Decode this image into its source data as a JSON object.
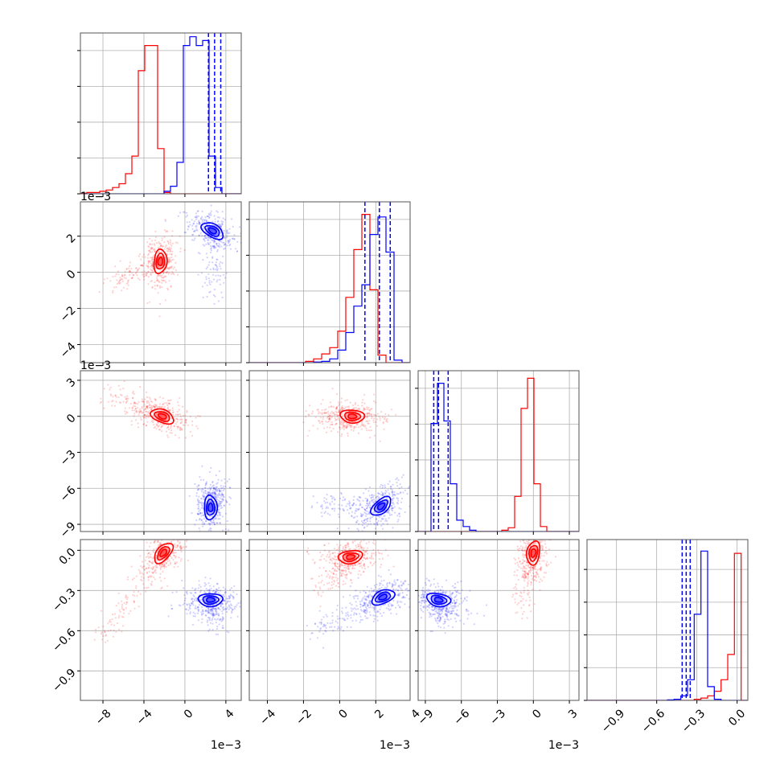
{
  "colors": {
    "red": "#ff0000",
    "blue": "#0000ff",
    "grid": "#b0b0b0",
    "frame": "#555555"
  },
  "chart_data": {
    "type": "corner",
    "grid": true,
    "series_colors": [
      "red",
      "blue"
    ],
    "axes": [
      {
        "scale_label": "1e−3",
        "range": [
          -10.2,
          5.5
        ],
        "ticks": [
          {
            "v": -8,
            "label": "−8"
          },
          {
            "v": -4,
            "label": "−4"
          },
          {
            "v": 0,
            "label": "0"
          },
          {
            "v": 4,
            "label": "4"
          }
        ]
      },
      {
        "scale_label": "1e−3",
        "range": [
          -5.0,
          3.9
        ],
        "ticks": [
          {
            "v": -4,
            "label": "−4"
          },
          {
            "v": -2,
            "label": "−2"
          },
          {
            "v": 0,
            "label": "0"
          },
          {
            "v": 2,
            "label": "2"
          },
          {
            "v": 4,
            "label": "4"
          }
        ]
      },
      {
        "scale_label": "1e−3",
        "range": [
          -9.6,
          3.8
        ],
        "ticks": [
          {
            "v": -9,
            "label": "−9"
          },
          {
            "v": -6,
            "label": "−6"
          },
          {
            "v": -3,
            "label": "−3"
          },
          {
            "v": 0,
            "label": "0"
          },
          {
            "v": 3,
            "label": "3"
          }
        ]
      },
      {
        "scale_label": "",
        "range": [
          -1.12,
          0.08
        ],
        "ticks": [
          {
            "v": -0.9,
            "label": "−0.9"
          },
          {
            "v": -0.6,
            "label": "−0.6"
          },
          {
            "v": -0.3,
            "label": "−0.3"
          },
          {
            "v": 0.0,
            "label": "0.0"
          }
        ]
      }
    ],
    "marginals": [
      {
        "red": {
          "edges": [
            -10.2,
            5.5
          ],
          "counts": [
            0.5,
            1,
            1,
            2,
            3,
            5,
            8,
            16,
            30,
            98,
            118,
            118,
            36,
            1,
            0,
            0,
            0,
            0,
            0,
            0,
            0,
            0,
            0,
            0,
            0
          ]
        },
        "blue": {
          "edges": [
            -10.2,
            5.5
          ],
          "counts": [
            0,
            0,
            0,
            0,
            0,
            0,
            0,
            0,
            0,
            0,
            0,
            0,
            0,
            2,
            6,
            25,
            118,
            125,
            118,
            122,
            30,
            5,
            0,
            0,
            0
          ]
        },
        "quantiles": [
          2.3,
          2.9,
          3.5
        ],
        "ymax": 128
      },
      {
        "red": {
          "edges": [
            -5.0,
            3.9
          ],
          "counts": [
            0,
            0,
            0,
            0,
            0,
            0,
            0,
            1,
            3,
            7,
            12,
            25,
            52,
            90,
            118,
            58,
            6,
            0,
            0,
            0
          ]
        },
        "blue": {
          "edges": [
            -5.0,
            3.9
          ],
          "counts": [
            0,
            0,
            0,
            0,
            0,
            0,
            0,
            0,
            0.5,
            1,
            3,
            10,
            24,
            45,
            62,
            102,
            116,
            88,
            2,
            0
          ]
        },
        "quantiles": [
          1.4,
          2.2,
          2.8
        ],
        "ymax": 128
      },
      {
        "red": {
          "edges": [
            -9.6,
            3.8
          ],
          "counts": [
            0,
            0,
            0,
            0,
            0,
            0,
            0,
            0,
            0,
            0,
            0,
            0,
            0,
            1,
            3,
            28,
            98,
            122,
            38,
            4,
            0,
            0,
            0,
            0,
            0
          ]
        },
        "blue": {
          "edges": [
            -9.6,
            3.8
          ],
          "counts": [
            0,
            0,
            86,
            118,
            88,
            38,
            9,
            4,
            1,
            0,
            0,
            0,
            0,
            0,
            0,
            0,
            0,
            0,
            0,
            0,
            0,
            0,
            0,
            0,
            0
          ]
        },
        "quantiles": [
          -8.3,
          -7.9,
          -7.1
        ],
        "ymax": 128
      },
      {
        "red": {
          "edges": [
            -1.12,
            0.08
          ],
          "counts": [
            0,
            0,
            0,
            0,
            0,
            0,
            0,
            0,
            0,
            0,
            0,
            0,
            0,
            0,
            0,
            0,
            1,
            2,
            4,
            8,
            18,
            40,
            128,
            0
          ]
        },
        "blue": {
          "edges": [
            -1.12,
            0.08
          ],
          "counts": [
            0,
            0,
            0,
            0,
            0,
            0,
            0,
            0,
            0,
            0,
            0,
            0,
            0.5,
            1,
            4,
            18,
            75,
            130,
            12,
            1,
            0,
            0,
            0,
            0
          ]
        },
        "quantiles": [
          -0.41,
          -0.38,
          -0.35
        ],
        "ymax": 140
      }
    ],
    "pairs": [
      {
        "x": 0,
        "y": 1,
        "red": {
          "center": [
            -2.4,
            0.6
          ],
          "orient": [
            -2.2,
            1.7
          ],
          "tail": [
            -7.2,
            -0.5
          ]
        },
        "blue": {
          "center": [
            2.7,
            2.3
          ],
          "orient": [
            1.2,
            2.8
          ],
          "tail": [
            2.8,
            -1.2
          ]
        }
      },
      {
        "x": 0,
        "y": 2,
        "red": {
          "center": [
            -2.2,
            0.0
          ],
          "orient": [
            -7.5,
            1.8
          ],
          "tail": [
            -7.5,
            1.8
          ]
        },
        "blue": {
          "center": [
            2.5,
            -7.6
          ],
          "orient": [
            2.5,
            -6.0
          ],
          "tail": [
            3.2,
            -6.0
          ]
        }
      },
      {
        "x": 1,
        "y": 2,
        "red": {
          "center": [
            0.7,
            0.0
          ],
          "orient": [
            2.4,
            -0.2
          ],
          "tail": [
            -1.5,
            -0.3
          ]
        },
        "blue": {
          "center": [
            2.3,
            -7.5
          ],
          "orient": [
            3.2,
            -6.3
          ],
          "tail": [
            -1.0,
            -7.5
          ]
        }
      },
      {
        "x": 0,
        "y": 3,
        "red": {
          "center": [
            -2.1,
            -0.02
          ],
          "orient": [
            -5.8,
            -0.35
          ],
          "tail": [
            -8.5,
            -0.7
          ]
        },
        "blue": {
          "center": [
            2.5,
            -0.37
          ],
          "orient": [
            3.8,
            -0.37
          ],
          "tail": [
            3.0,
            -0.55
          ]
        }
      },
      {
        "x": 1,
        "y": 3,
        "red": {
          "center": [
            0.6,
            -0.05
          ],
          "orient": [
            2.2,
            -0.02
          ],
          "tail": [
            -1.0,
            -0.3
          ]
        },
        "blue": {
          "center": [
            2.4,
            -0.35
          ],
          "orient": [
            -1.0,
            -0.55
          ],
          "tail": [
            -1.2,
            -0.6
          ]
        }
      },
      {
        "x": 2,
        "y": 3,
        "red": {
          "center": [
            0.0,
            -0.02
          ],
          "orient": [
            -0.5,
            -0.3
          ],
          "tail": [
            -1.0,
            -0.45
          ]
        },
        "blue": {
          "center": [
            -7.9,
            -0.37
          ],
          "orient": [
            -6.2,
            -0.4
          ],
          "tail": [
            -7.5,
            -0.55
          ]
        }
      }
    ]
  }
}
